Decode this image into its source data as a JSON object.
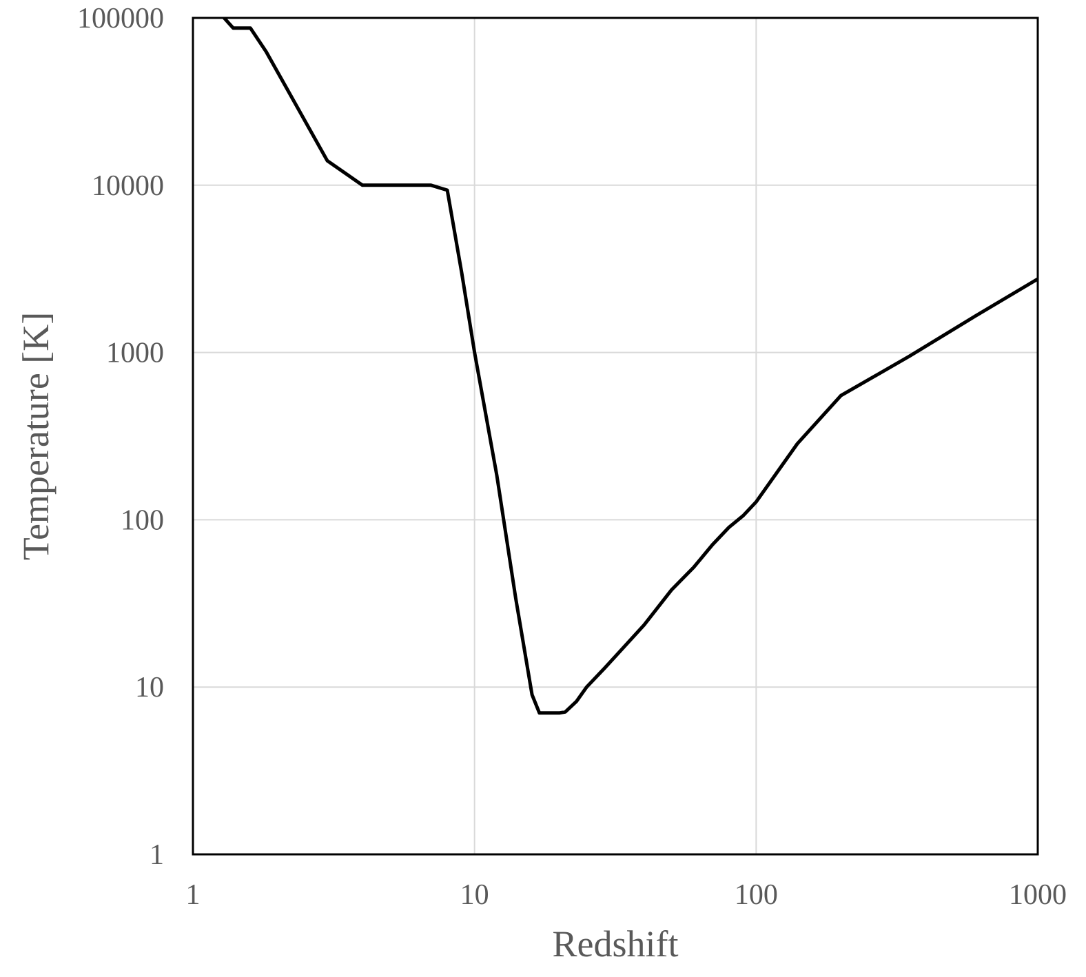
{
  "chart_data": {
    "type": "line",
    "x_label": "Redshift",
    "y_label": "Temperature [K]",
    "x": [
      1.29,
      1.39,
      1.6,
      1.82,
      3,
      4,
      7,
      8,
      9,
      10,
      12,
      14,
      16,
      17,
      20,
      21,
      23,
      25,
      29,
      40,
      50,
      60,
      70,
      80,
      90,
      100,
      140,
      200,
      350,
      600,
      1000
    ],
    "values": [
      100000,
      87000,
      87000,
      62800,
      14000,
      10000,
      10000,
      9340,
      3000,
      1000,
      184,
      34,
      9,
      7,
      7,
      7.1,
      8.2,
      10,
      13,
      23.5,
      38,
      52,
      71,
      90,
      106,
      128,
      285,
      553,
      950,
      1650,
      2750
    ],
    "color": "#000000",
    "xscale": "log",
    "yscale": "log",
    "xlim": [
      1,
      1000
    ],
    "ylim": [
      1,
      100000
    ],
    "xticks": [
      1,
      10,
      100,
      1000
    ],
    "yticks": [
      1,
      10,
      100,
      1000,
      10000,
      100000
    ],
    "grid": true
  }
}
